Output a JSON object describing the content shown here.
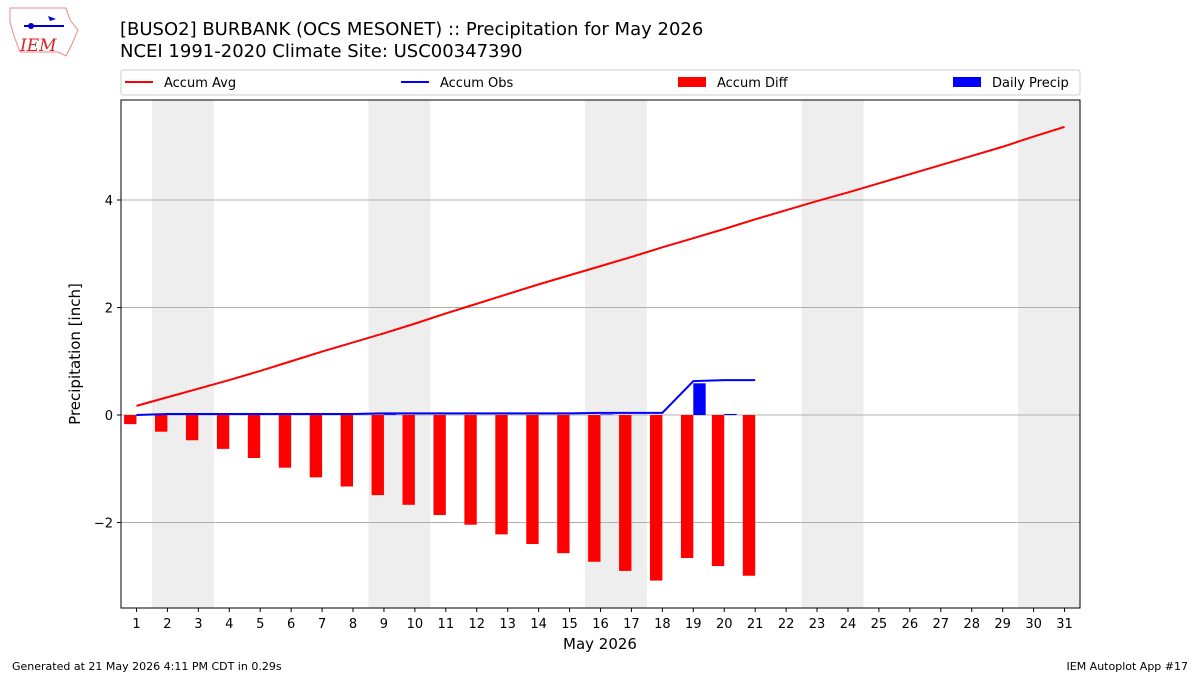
{
  "chart_data": {
    "type": "precip",
    "title": "[BUSO2] BURBANK (OCS MESONET) :: Precipitation for May 2026",
    "subtitle": "NCEI 1991-2020 Climate Site: USC00347390",
    "logo_text": "IEM",
    "ylabel": "Precipitation [inch]",
    "xlabel": "May 2026",
    "footer_left": "Generated at 21 May 2026 4:11 PM CDT in 0.29s",
    "footer_right": "IEM Autoplot App #17",
    "x": [
      1,
      2,
      3,
      4,
      5,
      6,
      7,
      8,
      9,
      10,
      11,
      12,
      13,
      14,
      15,
      16,
      17,
      18,
      19,
      20,
      21,
      22,
      23,
      24,
      25,
      26,
      27,
      28,
      29,
      30,
      31
    ],
    "xlim": [
      0.5,
      31.5
    ],
    "xticks": [
      1,
      2,
      3,
      4,
      5,
      6,
      7,
      8,
      9,
      10,
      11,
      12,
      13,
      14,
      15,
      16,
      17,
      18,
      19,
      20,
      21,
      22,
      23,
      24,
      25,
      26,
      27,
      28,
      29,
      30,
      31
    ],
    "ylim": [
      -3.59,
      5.86
    ],
    "yticks": [
      {
        "value": -2,
        "label": "−2"
      },
      0,
      2,
      4
    ],
    "grid": true,
    "weekend_spans": [
      [
        1.5,
        3.5
      ],
      [
        8.5,
        10.5
      ],
      [
        15.5,
        17.5
      ],
      [
        22.5,
        24.5
      ],
      [
        29.5,
        31.5
      ]
    ],
    "series": [
      {
        "name": "Accum Avg",
        "kind": "line",
        "color": "#ff0000",
        "values": [
          0.17,
          0.33,
          0.49,
          0.65,
          0.82,
          1.0,
          1.18,
          1.35,
          1.52,
          1.7,
          1.89,
          2.07,
          2.25,
          2.43,
          2.6,
          2.77,
          2.94,
          3.12,
          3.29,
          3.46,
          3.64,
          3.81,
          3.98,
          4.14,
          4.31,
          4.48,
          4.65,
          4.82,
          4.99,
          5.18,
          5.36
        ]
      },
      {
        "name": "Accum Obs",
        "kind": "line",
        "color": "#0000ff",
        "values": [
          0,
          0.02,
          0.02,
          0.02,
          0.02,
          0.02,
          0.02,
          0.02,
          0.03,
          0.03,
          0.03,
          0.03,
          0.03,
          0.03,
          0.03,
          0.04,
          0.04,
          0.04,
          0.63,
          0.65,
          0.65,
          null,
          null,
          null,
          null,
          null,
          null,
          null,
          null,
          null,
          null
        ]
      },
      {
        "name": "Accum Diff",
        "kind": "bar",
        "offset": -0.2,
        "color": "#ff0000",
        "values": [
          -0.17,
          -0.31,
          -0.47,
          -0.63,
          -0.8,
          -0.98,
          -1.16,
          -1.33,
          -1.49,
          -1.67,
          -1.86,
          -2.04,
          -2.22,
          -2.4,
          -2.57,
          -2.73,
          -2.9,
          -3.08,
          -2.66,
          -2.81,
          -2.99,
          null,
          null,
          null,
          null,
          null,
          null,
          null,
          null,
          null,
          null
        ]
      },
      {
        "name": "Daily Precip",
        "kind": "bar",
        "offset": 0.2,
        "color": "#0000ff",
        "values": [
          0,
          0.02,
          0,
          0,
          0,
          0,
          0,
          0,
          0.01,
          0,
          0,
          0,
          0,
          0,
          0,
          0.01,
          0,
          0,
          0.59,
          0.02,
          0,
          null,
          null,
          null,
          null,
          null,
          null,
          null,
          null,
          null,
          null
        ]
      }
    ]
  }
}
